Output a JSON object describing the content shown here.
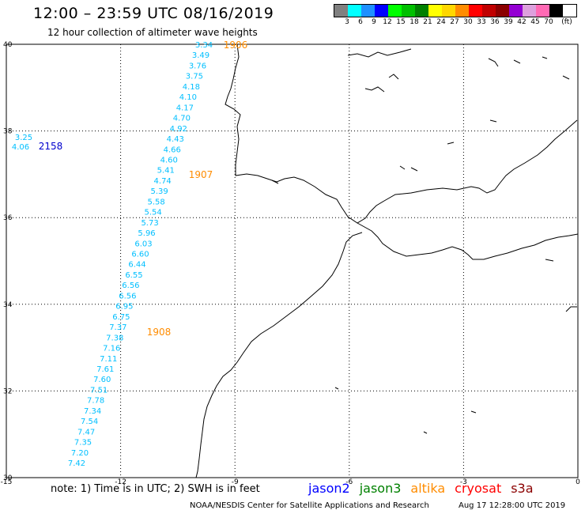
{
  "header": {
    "title": "12:00 – 23:59 UTC 08/16/2019",
    "subtitle": "12 hour collection of altimeter wave heights"
  },
  "legend": {
    "colors": [
      "#808080",
      "#00ffff",
      "#1e90ff",
      "#0000ff",
      "#00ff00",
      "#00c000",
      "#008000",
      "#ffff00",
      "#ffd700",
      "#ff8c00",
      "#ff0000",
      "#c00000",
      "#8b0000",
      "#9400d3",
      "#dda0dd",
      "#ff69b4",
      "#000000",
      "#ffffff"
    ],
    "labels": [
      "3",
      "6",
      "9",
      "12",
      "15",
      "18",
      "21",
      "24",
      "27",
      "30",
      "33",
      "36",
      "39",
      "42",
      "45",
      "70",
      "(ft)"
    ]
  },
  "map": {
    "lon_range": [
      -15,
      0
    ],
    "lat_range": [
      30,
      40
    ],
    "lon_ticks": [
      "-15",
      "-12",
      "-9",
      "-6",
      "-3",
      "0"
    ],
    "lat_ticks": [
      "40",
      "38",
      "36",
      "34",
      "32",
      "30"
    ],
    "grid": "dotted",
    "track_color": "#00bfff",
    "passes": [
      {
        "label": "1906",
        "color": "#ff8c00"
      },
      {
        "label": "2158",
        "color": "#0000cd"
      },
      {
        "label": "1907",
        "color": "#ff8c00"
      },
      {
        "label": "1908",
        "color": "#ff8c00"
      }
    ],
    "readings": [
      "3.34",
      "3.49",
      "3.76",
      "3.75",
      "4.18",
      "4.10",
      "4.17",
      "4.70",
      "4.92",
      "4.43",
      "4.66",
      "4.60",
      "5.41",
      "4.74",
      "5.39",
      "5.58",
      "5.54",
      "5.73",
      "5.96",
      "6.03",
      "6.60",
      "6.44",
      "6.55",
      "6.56",
      "6.56",
      "6.95",
      "6.75",
      "7.37",
      "7.38",
      "7.16",
      "7.11",
      "7.61",
      "7.60",
      "7.51",
      "7.78",
      "7.34",
      "7.54",
      "7.47",
      "7.35",
      "7.20",
      "7.42"
    ],
    "west_readings": [
      "3.25",
      "4.06"
    ]
  },
  "footer": {
    "note": "note: 1) Time is in UTC; 2) SWH is in feet",
    "satellites": [
      {
        "name": "jason2",
        "color": "#0000ff"
      },
      {
        "name": "jason3",
        "color": "#008000"
      },
      {
        "name": "altika",
        "color": "#ff8c00"
      },
      {
        "name": "cryosat",
        "color": "#ff0000"
      },
      {
        "name": "s3a",
        "color": "#8b0000"
      }
    ],
    "credit": "NOAA/NESDIS Center for Satellite Applications and Research",
    "timestamp": "Aug 17 12:28:00 UTC 2019"
  }
}
